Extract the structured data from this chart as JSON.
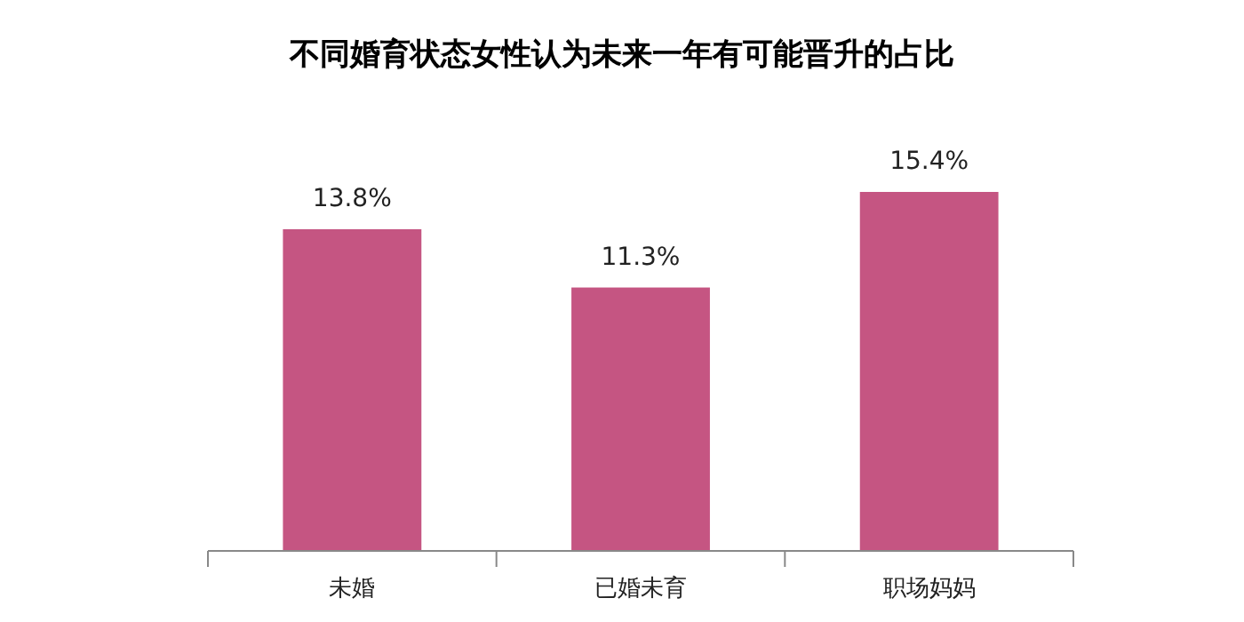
{
  "chart_data": {
    "type": "bar",
    "title": "不同婚育状态女性认为未来一年有可能晋升的占比",
    "categories": [
      "未婚",
      "已婚未育",
      "职场妈妈"
    ],
    "values": [
      13.8,
      11.3,
      15.4
    ],
    "value_labels": [
      "13.8%",
      "11.3%",
      "15.4%"
    ],
    "color": "#c55582",
    "tick_labels": "x"
  }
}
